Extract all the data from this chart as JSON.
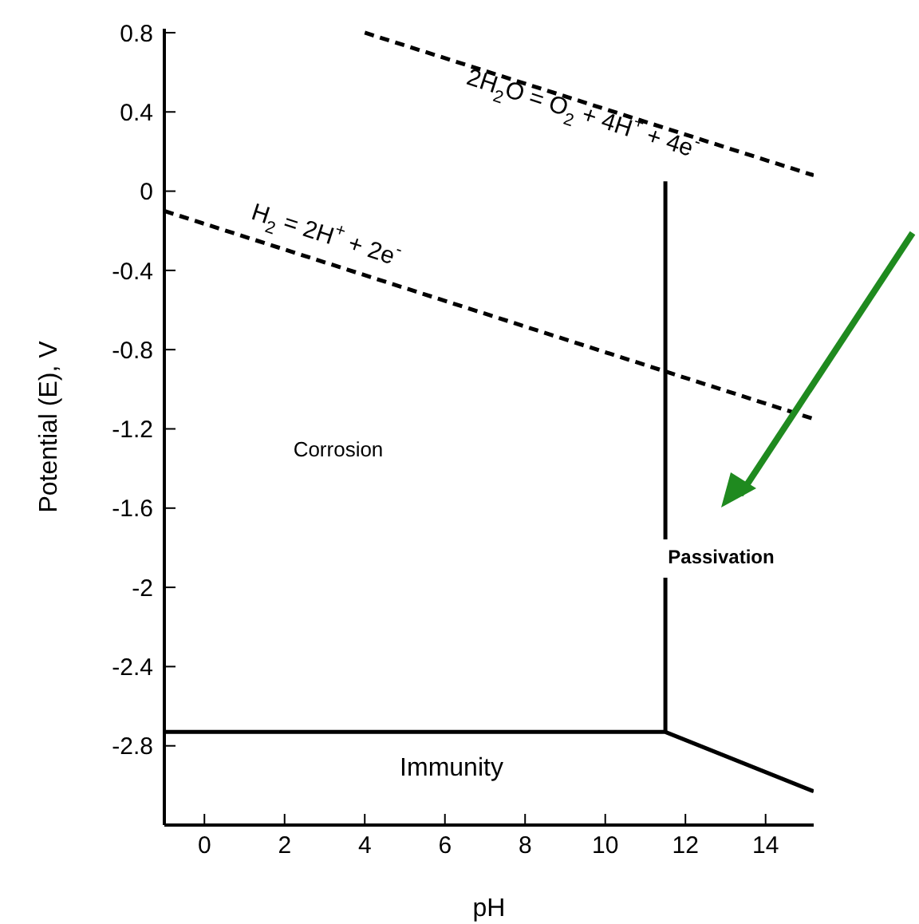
{
  "chart_data": {
    "type": "line",
    "xlabel": "pH",
    "ylabel": "Potential (E), V",
    "xlim": [
      -1,
      15.2
    ],
    "ylim": [
      -3.2,
      0.82
    ],
    "xticks": [
      0,
      2,
      4,
      6,
      8,
      10,
      12,
      14
    ],
    "yticks": [
      0.8,
      0.4,
      0,
      -0.4,
      -0.8,
      -1.2,
      -1.6,
      -2,
      -2.4,
      -2.8
    ],
    "grid": false,
    "legend": false,
    "marker": "none",
    "series": [
      {
        "color": "#000000",
        "line_style": "dashed",
        "x": [
          4.0,
          15.2
        ],
        "values": [
          0.8,
          0.08
        ]
      },
      {
        "color": "#000000",
        "line_style": "dashed",
        "x": [
          -1,
          15.2
        ],
        "values": [
          -0.1,
          -1.15
        ]
      },
      {
        "color": "#000000",
        "line_style": "solid",
        "x": [
          11.5,
          11.5
        ],
        "values": [
          0.05,
          -2.73
        ]
      },
      {
        "color": "#000000",
        "line_style": "solid",
        "x": [
          -1,
          11.5,
          15.2
        ],
        "values": [
          -2.73,
          -2.73,
          -3.03
        ]
      }
    ],
    "annotations": [
      "2H$_{2}$O = O$_{2}$ + 4H$^{+}$ + 4e$^{-}$",
      "H$_{2}$ = 2H$^{+}$ + 2e$^{-}$",
      "Corrosion",
      "Passivation",
      "Immunity"
    ]
  }
}
